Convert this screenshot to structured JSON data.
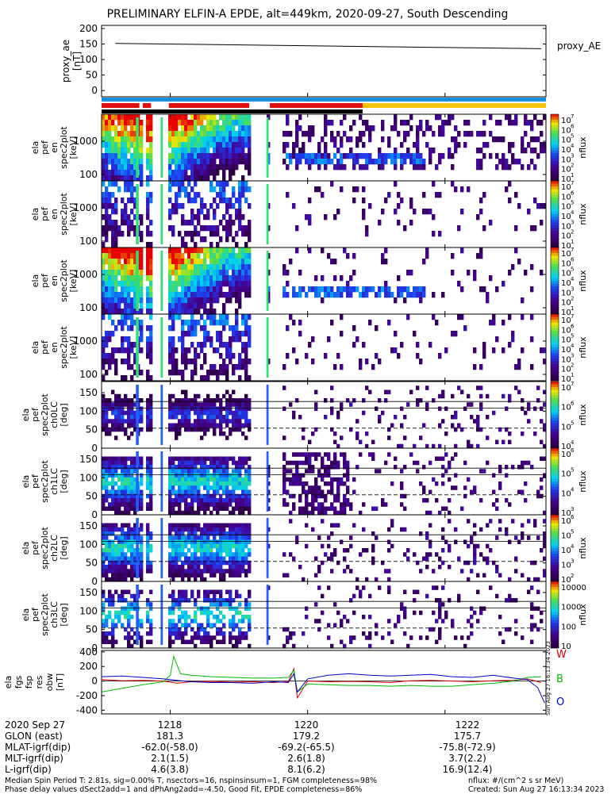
{
  "title": "PRELIMINARY ELFIN-A EPDE, alt=449km, 2020-09-27, South Descending",
  "chart_data": [
    {
      "type": "line",
      "panel": "proxy_ae",
      "ylabel": "proxy_ae [nT]",
      "yticks": [
        "200",
        "150",
        "100",
        "50",
        "0"
      ],
      "ylim": [
        -20,
        210
      ],
      "series": [
        {
          "name": "proxy_AE",
          "x": [
            1217.2,
            1223.4
          ],
          "values": [
            152,
            135
          ]
        }
      ]
    },
    {
      "type": "heatmap",
      "panel": "spectra",
      "xlim": [
        1217.0,
        1223.47
      ],
      "energy_yticks": [
        "1000",
        "100"
      ],
      "pitch_yticks": [
        "150",
        "100",
        "50",
        "0"
      ],
      "panels": [
        {
          "label": "ela pef en spec2plot [keV]",
          "kind": "energy",
          "clabel": "nflux",
          "cticks": [
            "10",
            "10",
            "10",
            "10",
            "10",
            "10",
            "10"
          ],
          "cexp": [
            "7",
            "6",
            "5",
            "4",
            "3",
            "2",
            "1"
          ]
        },
        {
          "label": "ela pef en spec2plot [keV]",
          "kind": "energy",
          "clabel": "nflux",
          "cticks": [
            "10",
            "10",
            "10",
            "10",
            "10",
            "10",
            "10"
          ],
          "cexp": [
            "7",
            "6",
            "5",
            "4",
            "3",
            "2",
            "1"
          ]
        },
        {
          "label": "ela pef en spec2plot [keV]",
          "kind": "energy",
          "clabel": "nflux",
          "cticks": [
            "10",
            "10",
            "10",
            "10",
            "10",
            "10",
            "10"
          ],
          "cexp": [
            "7",
            "6",
            "5",
            "4",
            "3",
            "2",
            "1"
          ]
        },
        {
          "label": "ela pef en spec2plot [keV]",
          "kind": "energy",
          "clabel": "nflux",
          "cticks": [
            "10",
            "10",
            "10",
            "10",
            "10",
            "10",
            "10"
          ],
          "cexp": [
            "7",
            "6",
            "5",
            "4",
            "3",
            "2",
            "1"
          ]
        },
        {
          "label": "ela pef spec2plot ch0LC [deg]",
          "kind": "pitch",
          "clabel": "nflux",
          "cticks": [
            "10",
            "10",
            "10",
            "10"
          ],
          "cexp": [
            "7",
            "6",
            "5",
            "4"
          ]
        },
        {
          "label": "ela pef spec2plot ch1LC [deg]",
          "kind": "pitch",
          "clabel": "nflux",
          "cticks": [
            "10",
            "10",
            "10",
            "10"
          ],
          "cexp": [
            "6",
            "5",
            "4",
            "3"
          ]
        },
        {
          "label": "ela pef spec2plot ch2LC [deg]",
          "kind": "pitch",
          "clabel": "nflux",
          "cticks": [
            "10",
            "10",
            "10",
            "10",
            "10"
          ],
          "cexp": [
            "6",
            "5",
            "4",
            "3",
            "2"
          ]
        },
        {
          "label": "ela pef spec2plot ch3LC [deg]",
          "kind": "pitch",
          "clabel": "nflux",
          "cticks": [
            "10000",
            "1000",
            "100",
            "10"
          ],
          "cexp": [
            "",
            "",
            "",
            ""
          ]
        }
      ]
    },
    {
      "type": "line",
      "panel": "dbw",
      "ylabel": "ela fgs fsp res obw [nT]",
      "yticks": [
        "400",
        "200",
        "0",
        "-200",
        "-400"
      ],
      "ylim": [
        -450,
        420
      ],
      "series": [
        {
          "name": "W",
          "color": "#dd0000",
          "x": [
            1217.0,
            1217.3,
            1217.6,
            1217.9,
            1218.1,
            1218.3,
            1218.6,
            1218.9,
            1219.2,
            1219.5,
            1219.72,
            1219.8,
            1219.85,
            1220.0,
            1220.3,
            1220.6,
            1220.9,
            1221.2,
            1221.5,
            1221.8,
            1222.1,
            1222.4,
            1222.7,
            1223.0,
            1223.2,
            1223.4
          ],
          "values": [
            20,
            5,
            10,
            0,
            -30,
            -10,
            -5,
            -15,
            -10,
            -20,
            -10,
            170,
            -230,
            0,
            -10,
            -5,
            -10,
            -20,
            5,
            10,
            0,
            -10,
            5,
            10,
            30,
            -20
          ]
        },
        {
          "name": "B",
          "color": "#00bb00",
          "x": [
            1217.0,
            1217.3,
            1217.6,
            1217.9,
            1218.0,
            1218.05,
            1218.15,
            1218.3,
            1218.6,
            1218.9,
            1219.2,
            1219.5,
            1219.72,
            1219.8,
            1219.85,
            1220.0,
            1220.3,
            1220.6,
            1220.9,
            1221.2,
            1221.5,
            1221.8,
            1222.1,
            1222.4,
            1222.7,
            1223.0,
            1223.2,
            1223.4
          ],
          "values": [
            -150,
            -100,
            -50,
            -10,
            80,
            340,
            100,
            80,
            60,
            50,
            40,
            40,
            50,
            150,
            -150,
            -40,
            -50,
            -60,
            -60,
            -70,
            -60,
            -70,
            -70,
            -50,
            -30,
            0,
            50,
            60
          ]
        },
        {
          "name": "O",
          "color": "#0000cc",
          "x": [
            1217.0,
            1217.3,
            1217.6,
            1217.9,
            1218.1,
            1218.3,
            1218.6,
            1218.9,
            1219.2,
            1219.5,
            1219.72,
            1219.8,
            1219.85,
            1220.0,
            1220.3,
            1220.6,
            1220.9,
            1221.2,
            1221.5,
            1221.8,
            1222.1,
            1222.4,
            1222.7,
            1223.0,
            1223.2,
            1223.35,
            1223.45
          ],
          "values": [
            60,
            70,
            50,
            30,
            10,
            -10,
            -20,
            -20,
            -30,
            -10,
            -20,
            100,
            -150,
            30,
            80,
            100,
            80,
            70,
            80,
            90,
            60,
            50,
            80,
            40,
            20,
            -90,
            -300
          ]
        }
      ]
    }
  ],
  "xticks": [
    "1218",
    "1220",
    "1222"
  ],
  "xtick_values": [
    1218,
    1220,
    1222
  ],
  "footer": {
    "rows": [
      {
        "label": "2020 Sep 27",
        "values": [
          "1218",
          "1220",
          "1222"
        ]
      },
      {
        "label": "GLON (east)",
        "values": [
          "181.3",
          "179.2",
          "175.7"
        ]
      },
      {
        "label": "MLAT-igrf(dip)",
        "values": [
          "-62.0(-58.0)",
          "-69.2(-65.5)",
          "-75.8(-72.9)"
        ]
      },
      {
        "label": "MLT-igrf(dip)",
        "values": [
          "2.1(1.5)",
          "2.6(1.8)",
          "3.7(2.2)"
        ]
      },
      {
        "label": "L-igrf(dip)",
        "values": [
          "4.6(3.8)",
          "8.1(6.2)",
          "16.9(12.4)"
        ]
      }
    ],
    "note1": "Median Spin Period T: 2.81s, sig=0.00% T, nsectors=16, nspinsinsum=1, FGM completeness=98%",
    "note2": "Phase delay values dSect2add=1 and dPhAng2add=-4.50, Good Fit, EPDE completeness=86%",
    "units": "nflux: #/(cm^2 s sr MeV)",
    "created": "Created: Sun Aug 27 16:13:34 2023",
    "side_stamp": "Sun Aug 27 16:13:34 2023"
  }
}
